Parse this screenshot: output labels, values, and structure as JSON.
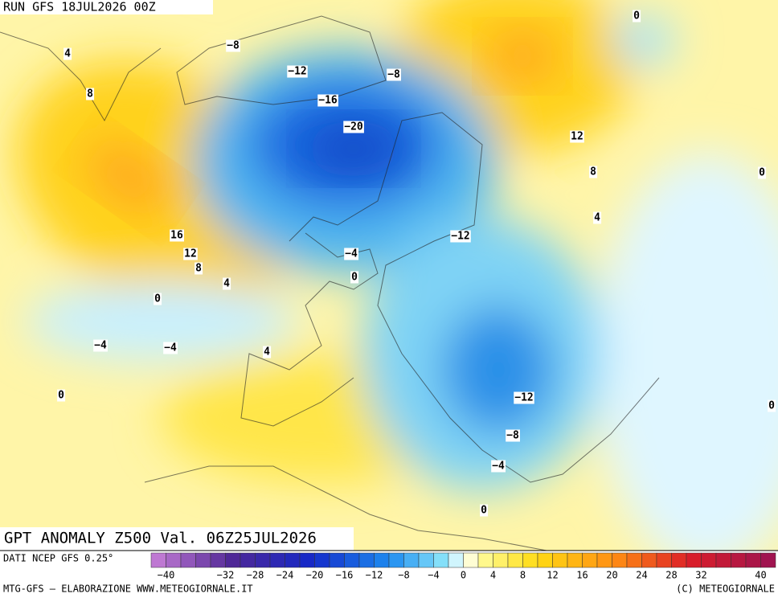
{
  "header": {
    "run": "RUN GFS 18JUL2026 00Z"
  },
  "map": {
    "title": "GPT ANOMALY Z500 Val. 06Z25JUL2026",
    "contour_labels": [
      "−8",
      "−12",
      "−8",
      "−16",
      "−20",
      "0",
      "4",
      "8",
      "12",
      "8",
      "16",
      "12",
      "8",
      "4",
      "4",
      "−12",
      "−4",
      "0",
      "0",
      "−4",
      "−4",
      "4",
      "0",
      "−12",
      "−8",
      "−4",
      "0",
      "0",
      "0"
    ]
  },
  "colorbar": {
    "source": "DATI NCEP GFS 0.25°",
    "ticks": [
      {
        "value": -40,
        "label": "−40"
      },
      {
        "value": -32,
        "label": "−32"
      },
      {
        "value": -28,
        "label": "−28"
      },
      {
        "value": -24,
        "label": "−24"
      },
      {
        "value": -20,
        "label": "−20"
      },
      {
        "value": -16,
        "label": "−16"
      },
      {
        "value": -12,
        "label": "−12"
      },
      {
        "value": -8,
        "label": "−8"
      },
      {
        "value": -4,
        "label": "−4"
      },
      0,
      4,
      8,
      12,
      16,
      20,
      24,
      28,
      32,
      40
    ]
  },
  "footer": {
    "left": "MTG-GFS — ELABORAZIONE WWW.METEOGIORNALE.IT",
    "right": "(C) METEOGIORNALE"
  }
}
